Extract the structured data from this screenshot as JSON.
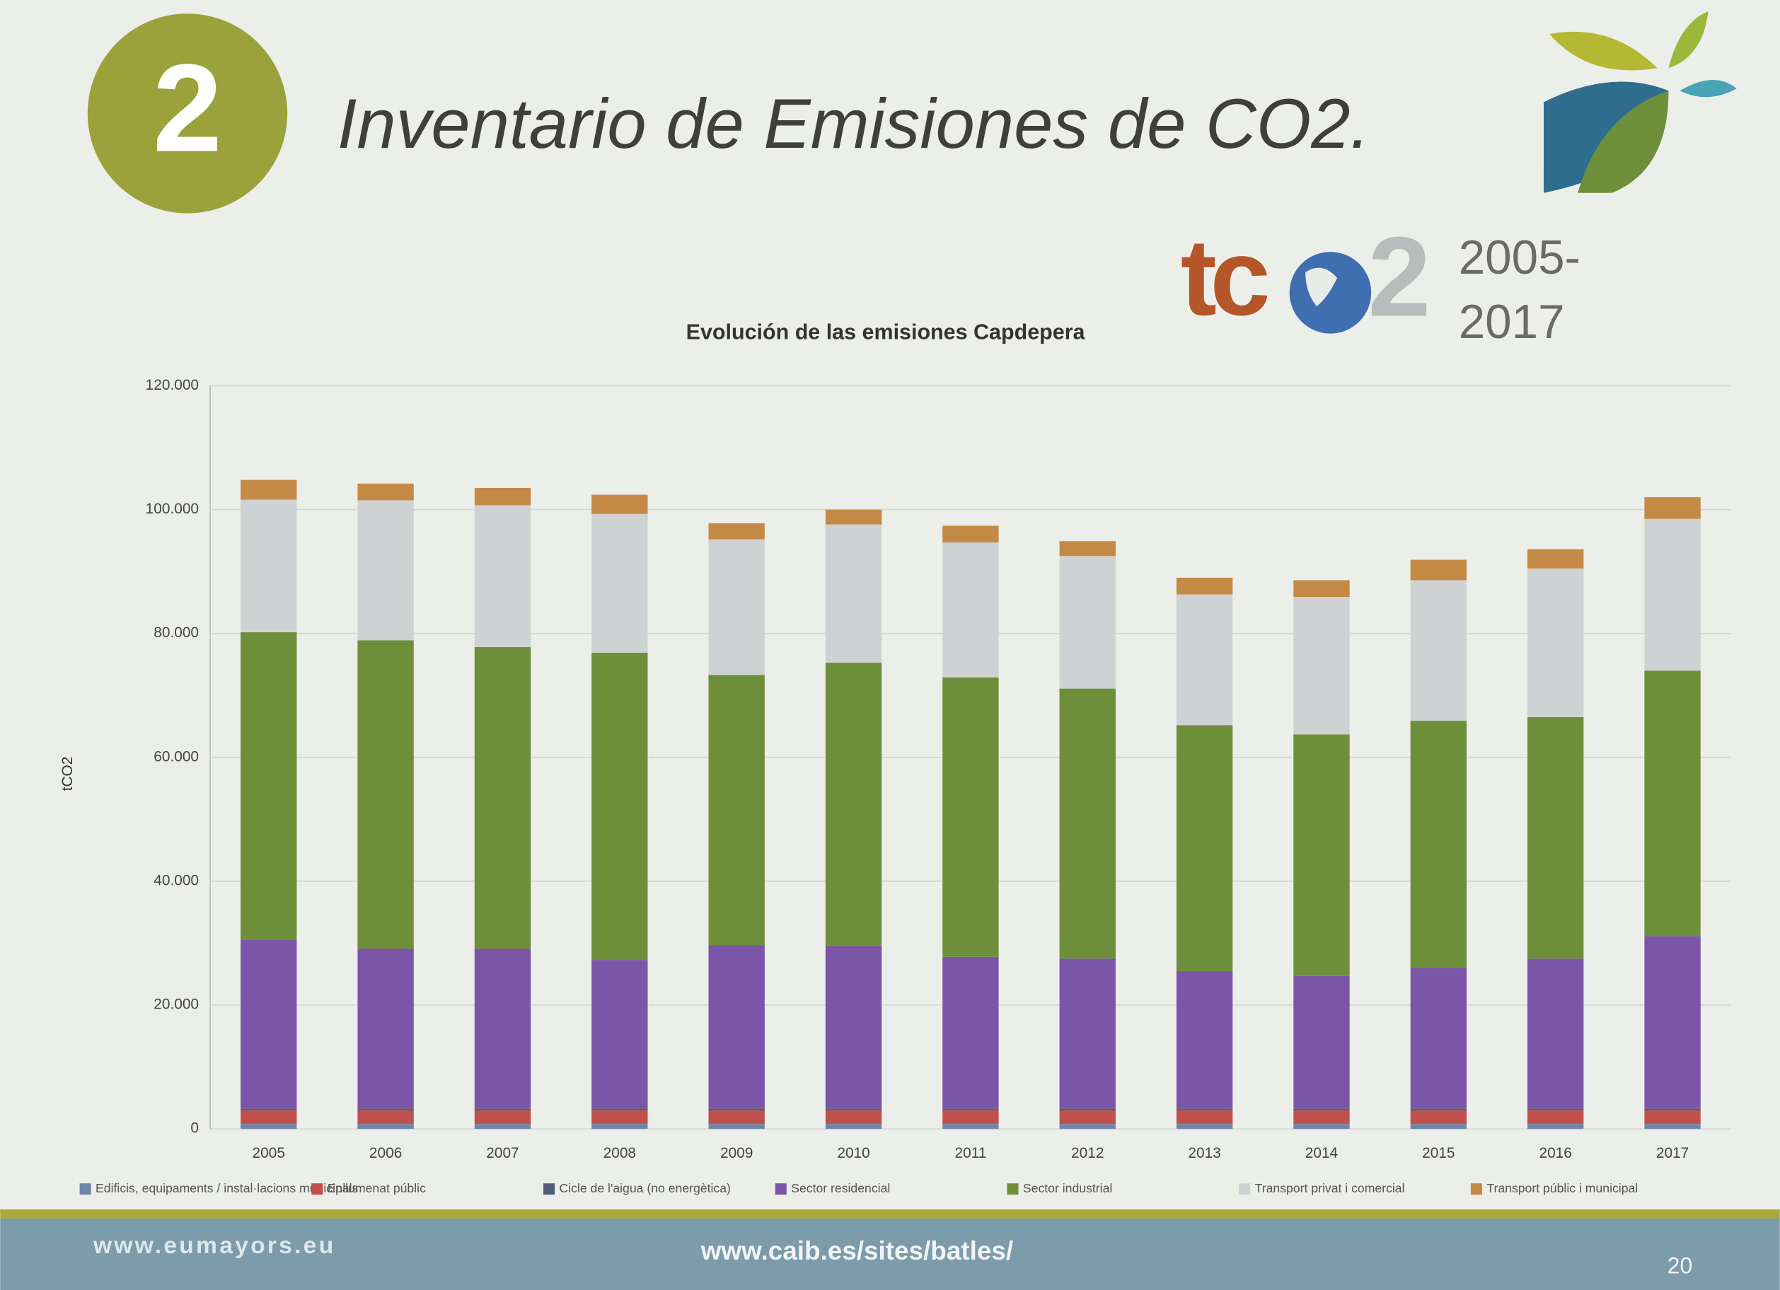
{
  "header": {
    "number": "2",
    "title": "Inventario de Emisiones de CO2.",
    "logo_left": "tc",
    "logo_right": "2",
    "years_start": "2005-",
    "years_end": "2017"
  },
  "chart_data": {
    "type": "stacked_bar",
    "title": "Evolución de las emisiones Capdepera",
    "y_label": "tCO2",
    "categories": [
      "2005",
      "2006",
      "2007",
      "2008",
      "2009",
      "2010",
      "2011",
      "2012",
      "2013",
      "2014",
      "2015",
      "2016",
      "2017"
    ],
    "series": [
      {
        "name": "Edificis, equipaments / instal·lacions municipals",
        "color": "#6f86a8",
        "values": [
          800,
          800,
          800,
          800,
          800,
          800,
          800,
          800,
          800,
          800,
          800,
          800,
          800
        ]
      },
      {
        "name": "Enllumenat públic",
        "color": "#c0504d",
        "values": [
          2200,
          2200,
          2200,
          2200,
          2200,
          2200,
          2200,
          2200,
          2200,
          2200,
          2200,
          2200,
          2200
        ]
      },
      {
        "name": "Cicle de l'aigua (no energètica)",
        "color": "#4f5f7a",
        "values": [
          300,
          300,
          300,
          300,
          300,
          300,
          300,
          300,
          300,
          300,
          300,
          300,
          300
        ]
      },
      {
        "name": "Sector residencial",
        "color": "#7b56a8",
        "values": [
          27300,
          25800,
          25800,
          24000,
          26400,
          26200,
          24500,
          24200,
          22200,
          21400,
          22700,
          24200,
          27800
        ]
      },
      {
        "name": "Sector industrial",
        "color": "#6e8f3a",
        "values": [
          49600,
          49800,
          48700,
          49600,
          43600,
          45800,
          45100,
          43600,
          39700,
          39000,
          39900,
          39000,
          42900
        ]
      },
      {
        "name": "Transport privat i comercial",
        "color": "#cfd2d3",
        "values": [
          21400,
          22600,
          22900,
          22400,
          21900,
          22300,
          21800,
          21400,
          21100,
          22200,
          22700,
          24000,
          24500
        ]
      },
      {
        "name": "Transport públic i municipal",
        "color": "#c48a45",
        "values": [
          3200,
          2700,
          2800,
          3100,
          2600,
          2400,
          2700,
          2400,
          2700,
          2700,
          3300,
          3100,
          3500
        ]
      }
    ],
    "ylim": [
      0,
      120000
    ],
    "yticks": [
      0,
      {
        "value": 20000,
        "label": "20.000"
      },
      {
        "value": 40000,
        "label": "40.000"
      },
      {
        "value": 60000,
        "label": "60.000"
      },
      {
        "value": 80000,
        "label": "80.000"
      },
      {
        "value": 100000,
        "label": "100.000"
      },
      {
        "value": 120000,
        "label": "120.000"
      }
    ],
    "grid": true
  },
  "footer": {
    "left": "www.eumayors.eu",
    "center": "www.caib.es/sites/batles/",
    "page": "20"
  }
}
